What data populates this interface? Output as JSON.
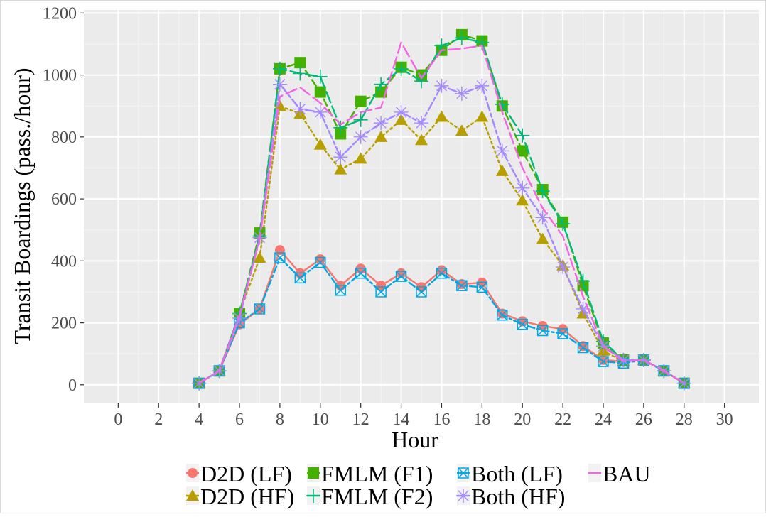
{
  "chart_data": {
    "type": "line",
    "xlabel": "Hour",
    "ylabel": "Transit Boardings (pass./hour)",
    "xlim": [
      -1.7,
      31.7
    ],
    "ylim": [
      -60,
      1210
    ],
    "x_ticks": [
      0,
      2,
      4,
      6,
      8,
      10,
      12,
      14,
      16,
      18,
      20,
      22,
      24,
      26,
      28,
      30
    ],
    "y_ticks": [
      0,
      200,
      400,
      600,
      800,
      1000,
      1200
    ],
    "x_tick_labels": [
      "0",
      "2",
      "4",
      "6",
      "8",
      "10",
      "12",
      "14",
      "16",
      "18",
      "20",
      "22",
      "24",
      "26",
      "28",
      "30"
    ],
    "y_tick_labels": [
      "0",
      "200",
      "400",
      "600",
      "800",
      "1000",
      "1200"
    ],
    "grid": true,
    "legend_position": "bottom",
    "x": [
      4,
      5,
      6,
      7,
      8,
      9,
      10,
      11,
      12,
      13,
      14,
      15,
      16,
      17,
      18,
      19,
      20,
      21,
      22,
      23,
      24,
      25,
      26,
      27,
      28
    ],
    "series": [
      {
        "name": "D2D (LF)",
        "color": "#f8766d",
        "marker": "circle",
        "dash": "solid",
        "values": [
          5,
          45,
          195,
          245,
          435,
          360,
          405,
          320,
          375,
          320,
          360,
          315,
          370,
          325,
          330,
          230,
          205,
          190,
          180,
          125,
          80,
          75,
          80,
          45,
          5
        ]
      },
      {
        "name": "D2D (HF)",
        "color": "#b79f00",
        "marker": "triangle",
        "dash": "dot",
        "values": [
          5,
          45,
          230,
          410,
          900,
          875,
          775,
          695,
          730,
          800,
          855,
          790,
          865,
          820,
          865,
          690,
          595,
          470,
          385,
          230,
          110,
          75,
          80,
          45,
          5
        ]
      },
      {
        "name": "FMLM (F1)",
        "color": "#44b100",
        "marker": "square",
        "dash": "dash",
        "values": [
          5,
          45,
          230,
          490,
          1020,
          1040,
          945,
          810,
          915,
          945,
          1025,
          1000,
          1080,
          1130,
          1110,
          900,
          755,
          630,
          525,
          320,
          135,
          80,
          80,
          45,
          5
        ]
      },
      {
        "name": "FMLM (F2)",
        "color": "#00ba7c",
        "marker": "plus",
        "dash": "longdash",
        "values": [
          5,
          45,
          230,
          480,
          1020,
          1005,
          995,
          830,
          855,
          970,
          1020,
          980,
          1095,
          1120,
          1105,
          905,
          805,
          625,
          520,
          335,
          140,
          80,
          80,
          45,
          5
        ]
      },
      {
        "name": "Both (LF)",
        "color": "#00a9e6",
        "marker": "square-x",
        "dash": "dotdash",
        "values": [
          5,
          45,
          200,
          245,
          410,
          345,
          395,
          305,
          360,
          300,
          350,
          300,
          360,
          320,
          315,
          225,
          195,
          175,
          165,
          120,
          75,
          70,
          80,
          45,
          5
        ]
      },
      {
        "name": "Both (HF)",
        "color": "#a58aff",
        "marker": "asterisk",
        "dash": "twodash",
        "values": [
          5,
          45,
          215,
          475,
          970,
          890,
          880,
          735,
          800,
          845,
          880,
          845,
          965,
          940,
          965,
          755,
          635,
          540,
          380,
          245,
          125,
          80,
          80,
          45,
          5
        ]
      },
      {
        "name": "BAU",
        "color": "#f564e3",
        "marker": "none",
        "dash": "longdash",
        "values": [
          5,
          45,
          225,
          470,
          930,
          960,
          910,
          840,
          880,
          895,
          1105,
          990,
          1080,
          1085,
          1095,
          880,
          700,
          570,
          480,
          285,
          125,
          75,
          80,
          45,
          5
        ]
      }
    ],
    "legend": {
      "rows": [
        [
          "D2D (LF)",
          "FMLM (F1)",
          "Both (LF)",
          "BAU"
        ],
        [
          "D2D (HF)",
          "FMLM (F2)",
          "Both (HF)"
        ]
      ]
    }
  }
}
